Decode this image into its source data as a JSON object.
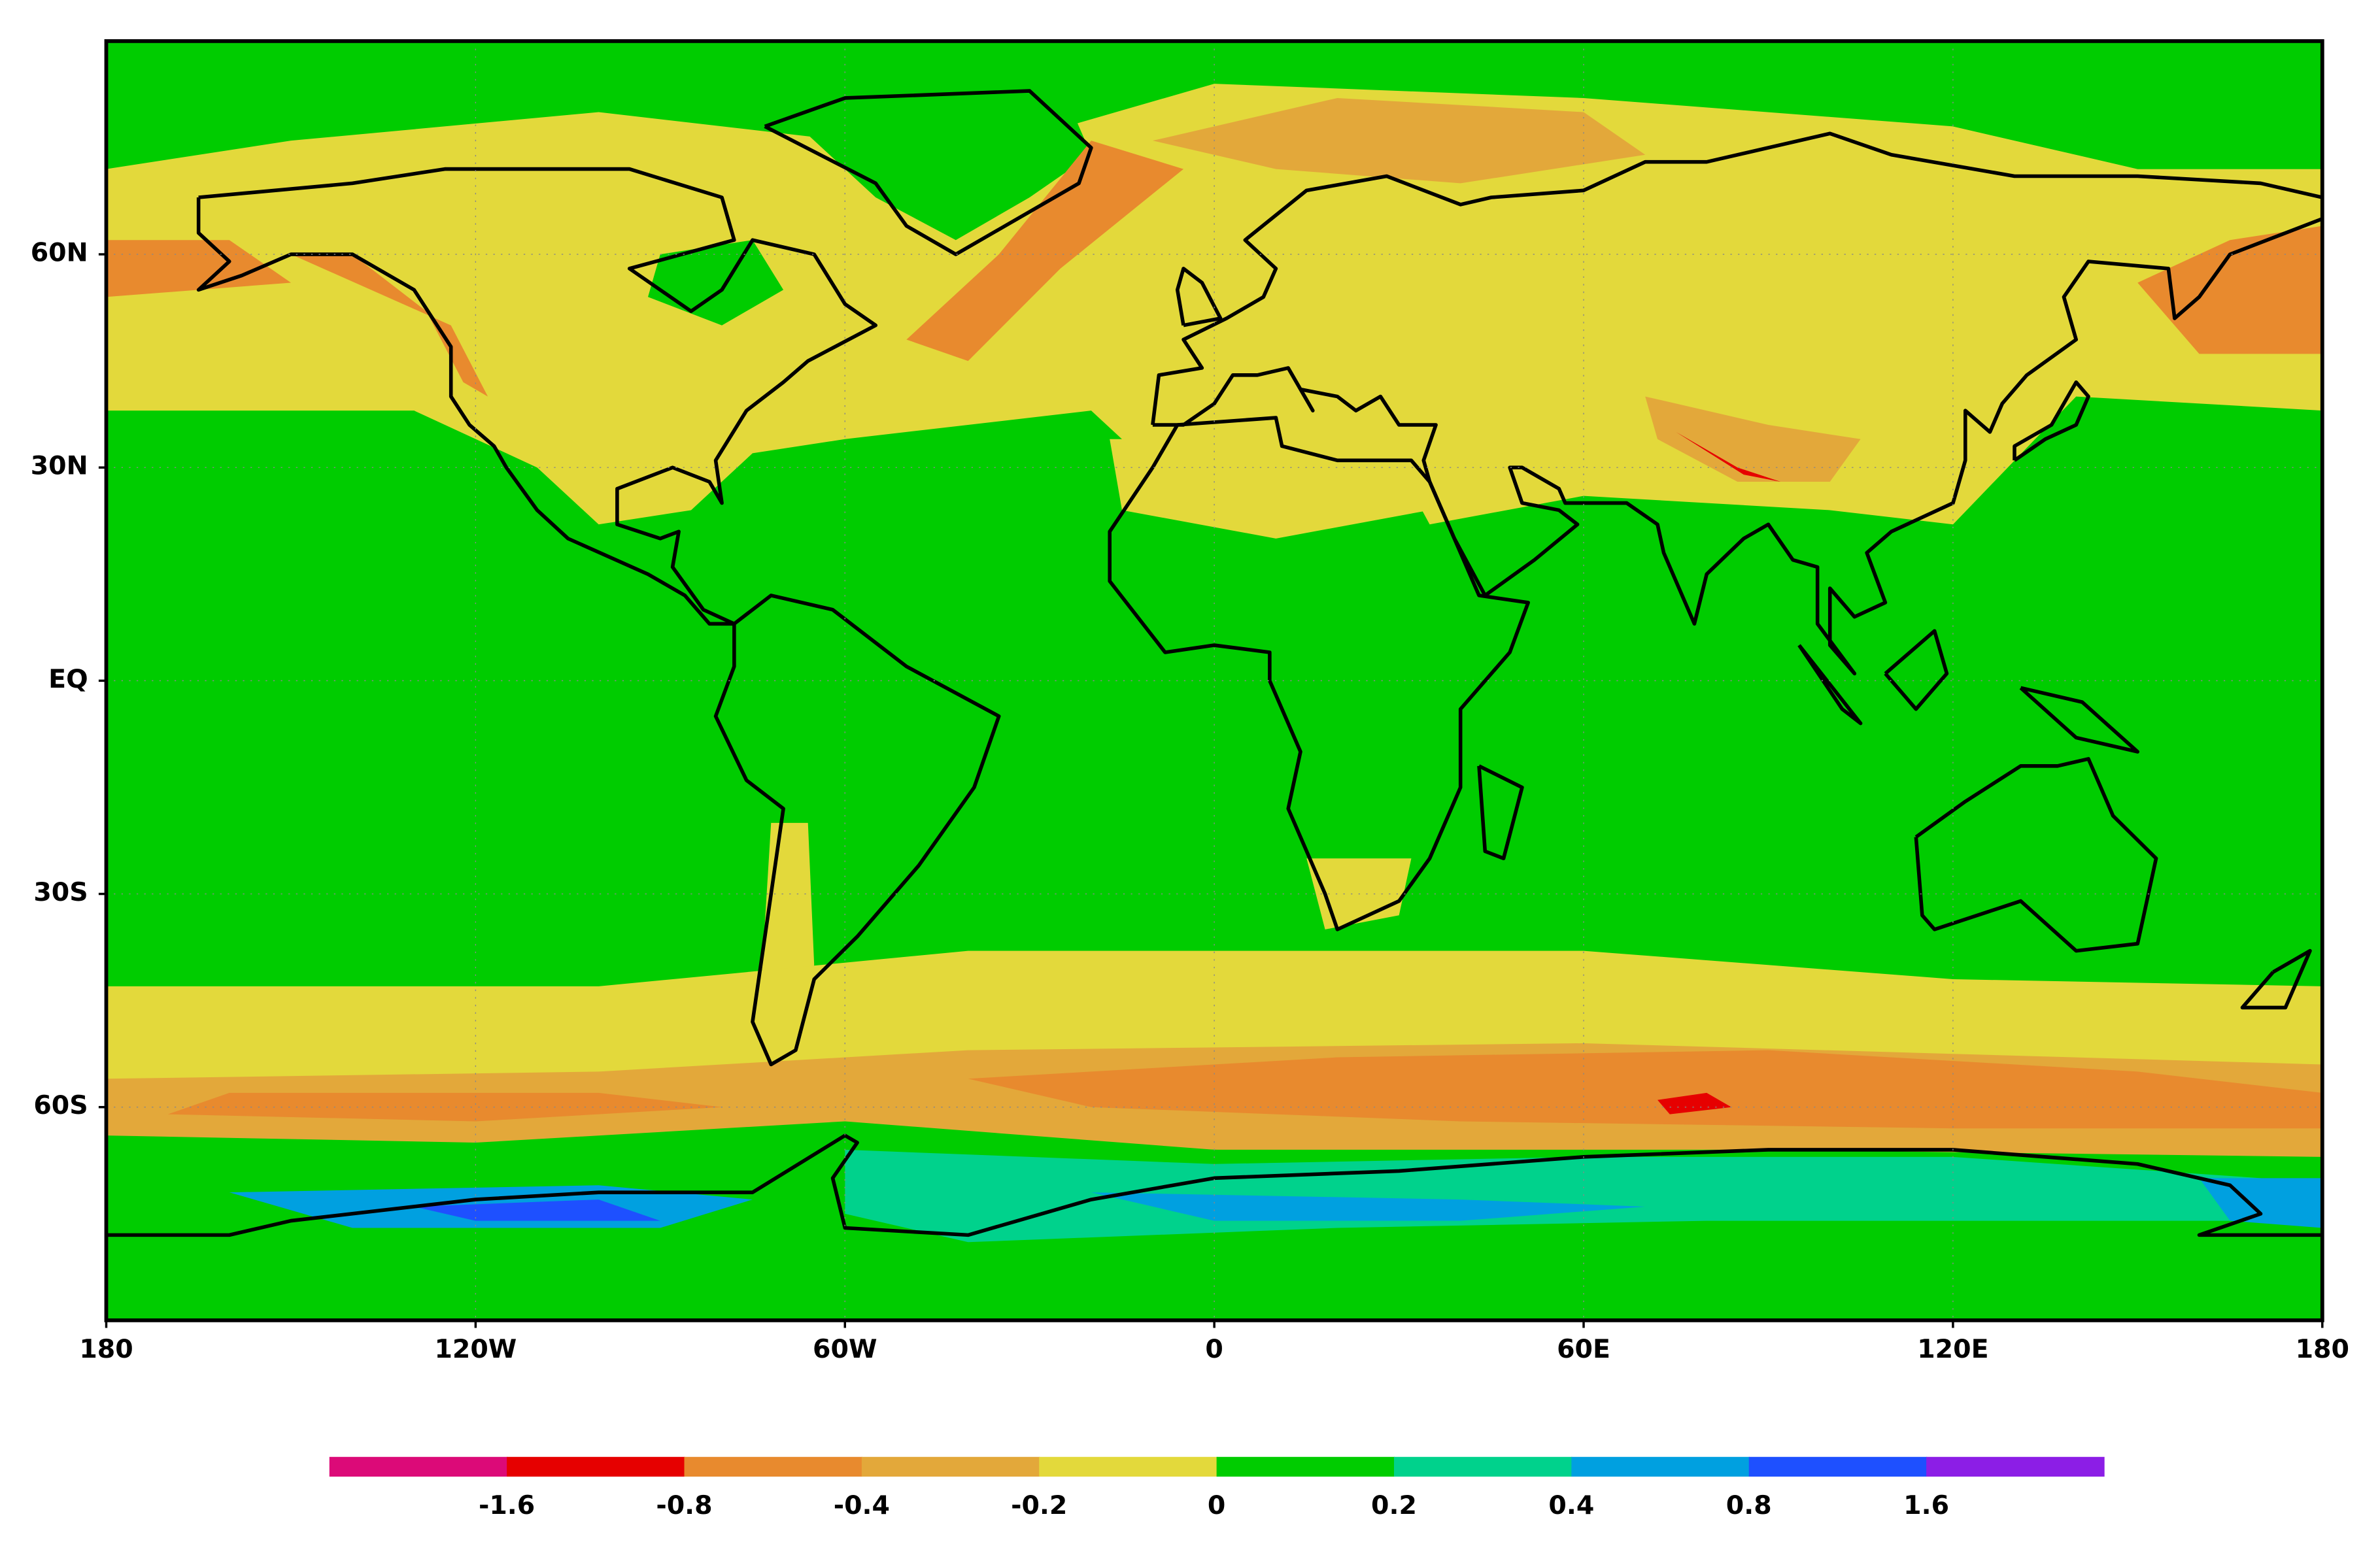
{
  "map": {
    "lonlim": [
      -180,
      180
    ],
    "latlim": [
      -90,
      90
    ],
    "grid": true,
    "xticks": [
      {
        "value": -180,
        "label": "180"
      },
      {
        "value": -120,
        "label": "120W"
      },
      {
        "value": -60,
        "label": "60W"
      },
      0,
      {
        "value": 60,
        "label": "60E"
      },
      {
        "value": 120,
        "label": "120E"
      },
      {
        "value": 180,
        "label": "180"
      }
    ],
    "yticks": [
      {
        "value": 60,
        "label": "60N"
      },
      {
        "value": 30,
        "label": "30N"
      },
      {
        "value": 0,
        "label": "EQ"
      },
      {
        "value": -30,
        "label": "30S"
      },
      {
        "value": -60,
        "label": "60S"
      }
    ]
  },
  "colorbar": {
    "colors": [
      "#dc0a78",
      "#e60000",
      "#e88a2e",
      "#e3a83a",
      "#e3d93b",
      "#00cc00",
      "#00d28c",
      "#00a0e0",
      "#1e50ff",
      "#8c1ee6"
    ],
    "levels": [
      -1.6,
      -0.8,
      -0.4,
      -0.2,
      0,
      0.2,
      0.4,
      0.8,
      1.6
    ]
  }
}
